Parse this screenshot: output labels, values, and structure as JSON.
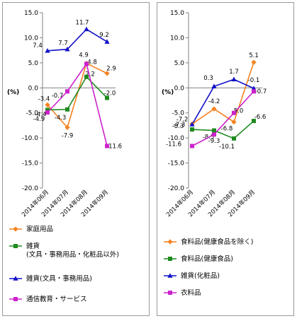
{
  "chart_data": [
    {
      "type": "line",
      "ylabel": "(%)",
      "ylim": [
        -20.0,
        15.0
      ],
      "ytick_step": 5,
      "ytick_labels": [
        "15.0",
        "10.0",
        "5.0",
        "0.0",
        "-5.0",
        "-10.0",
        "-15.0",
        "-20.0"
      ],
      "grid": false,
      "legend_position": "bottom",
      "categories": [
        "2014年06月",
        "2014年07月",
        "2014年08月",
        "2014年09月"
      ],
      "series": [
        {
          "name": "家庭用品",
          "color": "#f58220",
          "marker": "diamond",
          "values": [
            -3.4,
            -7.9,
            4.9,
            2.9
          ],
          "labels": [
            "-3.4",
            "-7.9",
            "4.9",
            "2.9"
          ]
        },
        {
          "name": "雑貨\n(文具・事務用品・化粧品以外)",
          "color": "#1f8a1f",
          "marker": "square",
          "values": [
            -4.4,
            -4.3,
            2.2,
            -2.0
          ],
          "labels": [
            "-4.4",
            "-4.3",
            "2.2",
            "-2.0"
          ]
        },
        {
          "name": "雑貨(文具・事務用品)",
          "color": "#1010c8",
          "marker": "triangle",
          "values": [
            7.4,
            7.7,
            11.7,
            9.2
          ],
          "labels": [
            "7.4",
            "7.7",
            "11.7",
            "9.2"
          ]
        },
        {
          "name": "通信教育・サービス",
          "color": "#cc22cc",
          "marker": "square",
          "values": [
            -4.9,
            -0.7,
            4.8,
            -11.6
          ],
          "labels": [
            "-4.9",
            "-0.7",
            "4.8",
            "-11.6"
          ]
        }
      ]
    },
    {
      "type": "line",
      "ylabel": "(%)",
      "ylim": [
        -20.0,
        15.0
      ],
      "ytick_step": 5,
      "ytick_labels": [
        "15.0",
        "10.0",
        "5.0",
        "0.0",
        "-5.0",
        "-10.0",
        "-15.0",
        "-20.0"
      ],
      "grid": false,
      "legend_position": "bottom",
      "categories": [
        "2014年06月",
        "2014年07月",
        "2014年08月",
        "2014年09月"
      ],
      "series": [
        {
          "name": "食料品(健康食品を除く)",
          "color": "#f58220",
          "marker": "diamond",
          "values": [
            -7.2,
            -4.2,
            -6.8,
            5.1
          ],
          "labels": [
            "-7.2",
            "-4.2",
            "-6.8",
            "5.1"
          ]
        },
        {
          "name": "食料品(健康食品)",
          "color": "#1f8a1f",
          "marker": "square",
          "values": [
            -8.3,
            -8.5,
            -10.1,
            -6.6
          ],
          "labels": [
            "-8.3",
            "-8.5",
            "-10.1",
            "-6.6"
          ]
        },
        {
          "name": "雑貨(化粧品)",
          "color": "#1010c8",
          "marker": "triangle",
          "values": [
            -7.3,
            0.3,
            1.7,
            -0.1
          ],
          "labels": [
            "-7.3",
            "0.3",
            "1.7",
            "-0.1"
          ]
        },
        {
          "name": "衣料品",
          "color": "#cc22cc",
          "marker": "square",
          "values": [
            -11.6,
            -9.3,
            -5.0,
            -0.7
          ],
          "labels": [
            "-11.6",
            "-9.3",
            "-5.0",
            "-0.7"
          ]
        }
      ]
    }
  ]
}
